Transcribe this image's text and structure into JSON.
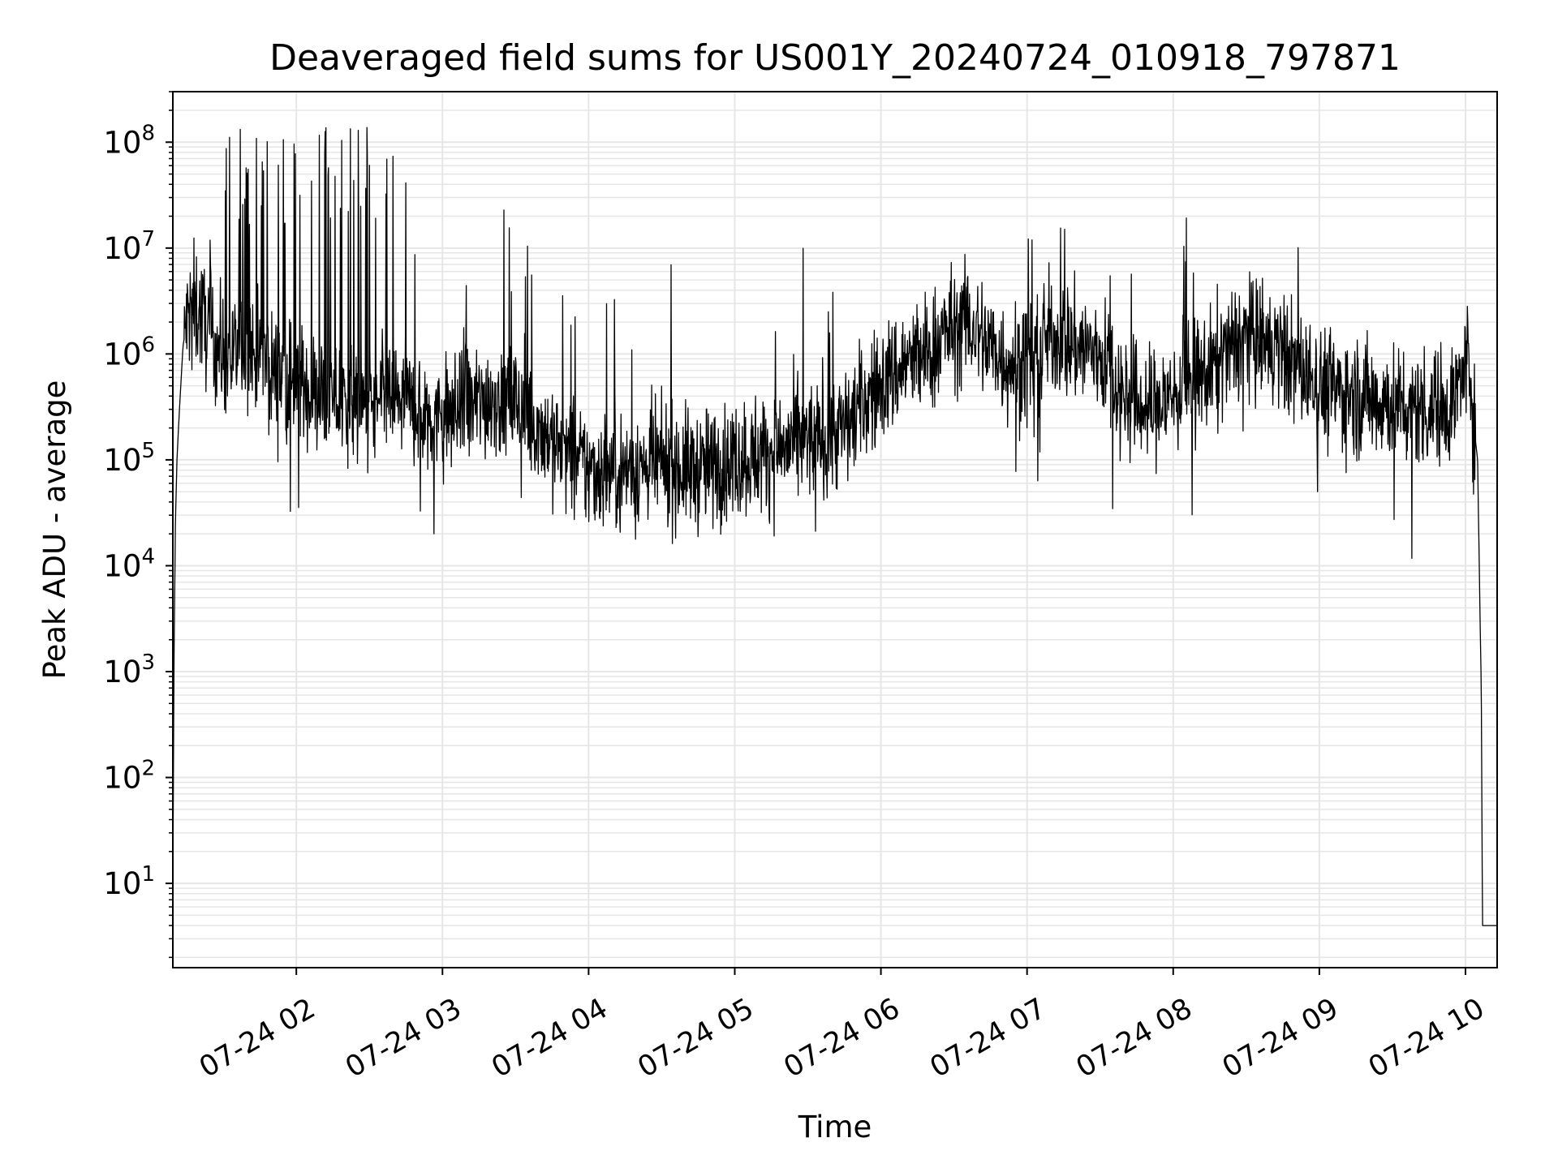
{
  "chart_data": {
    "type": "line",
    "title": "Deaveraged field sums for US001Y_20240724_010918_797871",
    "xlabel": "Time",
    "ylabel": "Peak ADU - average",
    "yscale": "log",
    "ylim": [
      1.6,
      300000000
    ],
    "xlim": [
      "2024-07-24 01:09:18",
      "2024-07-24 10:13:00"
    ],
    "grid": true,
    "line_color": "#000000",
    "grid_color": "#e6e6e6",
    "x_ticks": [
      {
        "t": "2024-07-24 02:00",
        "label": "07-24 02"
      },
      {
        "t": "2024-07-24 03:00",
        "label": "07-24 03"
      },
      {
        "t": "2024-07-24 04:00",
        "label": "07-24 04"
      },
      {
        "t": "2024-07-24 05:00",
        "label": "07-24 05"
      },
      {
        "t": "2024-07-24 06:00",
        "label": "07-24 06"
      },
      {
        "t": "2024-07-24 07:00",
        "label": "07-24 07"
      },
      {
        "t": "2024-07-24 08:00",
        "label": "07-24 08"
      },
      {
        "t": "2024-07-24 09:00",
        "label": "07-24 09"
      },
      {
        "t": "2024-07-24 10:00",
        "label": "07-24 10"
      }
    ],
    "y_ticks": [
      {
        "value": 10,
        "exp": "1"
      },
      {
        "value": 100,
        "exp": "2"
      },
      {
        "value": 1000,
        "exp": "3"
      },
      {
        "value": 10000,
        "exp": "4"
      },
      {
        "value": 100000,
        "exp": "5"
      },
      {
        "value": 1000000,
        "exp": "6"
      },
      {
        "value": 10000000,
        "exp": "7"
      },
      {
        "value": 100000000,
        "exp": "8"
      }
    ],
    "series": [
      {
        "x": [
          "2024-07-24 01:09:18",
          "2024-07-24 01:09:45",
          "2024-07-24 01:10:20",
          "2024-07-24 01:11:00",
          "2024-07-24 01:12:00",
          "2024-07-24 01:13:30",
          "2024-07-24 01:15:00",
          "2024-07-24 01:17:00",
          "2024-07-24 01:20:00",
          "2024-07-24 01:25:00",
          "2024-07-24 01:30:00",
          "2024-07-24 01:35:00",
          "2024-07-24 01:40:00",
          "2024-07-24 01:45:00",
          "2024-07-24 01:50:00",
          "2024-07-24 01:55:00",
          "2024-07-24 02:00:00",
          "2024-07-24 02:10:00",
          "2024-07-24 02:20:00",
          "2024-07-24 02:30:00",
          "2024-07-24 02:40:00",
          "2024-07-24 02:50:00",
          "2024-07-24 03:00:00",
          "2024-07-24 03:10:00",
          "2024-07-24 03:20:00",
          "2024-07-24 03:30:00",
          "2024-07-24 03:40:00",
          "2024-07-24 03:50:00",
          "2024-07-24 04:00:00",
          "2024-07-24 04:15:00",
          "2024-07-24 04:30:00",
          "2024-07-24 04:45:00",
          "2024-07-24 05:00:00",
          "2024-07-24 05:15:00",
          "2024-07-24 05:30:00",
          "2024-07-24 05:45:00",
          "2024-07-24 05:55:00",
          "2024-07-24 06:10:00",
          "2024-07-24 06:20:00",
          "2024-07-24 06:25:00",
          "2024-07-24 06:35:00",
          "2024-07-24 06:50:00",
          "2024-07-24 07:00:00",
          "2024-07-24 07:10:00",
          "2024-07-24 07:20:00",
          "2024-07-24 07:30:00",
          "2024-07-24 07:40:00",
          "2024-07-24 07:50:00",
          "2024-07-24 08:00:00",
          "2024-07-24 08:15:00",
          "2024-07-24 08:30:00",
          "2024-07-24 08:45:00",
          "2024-07-24 09:00:00",
          "2024-07-24 09:15:00",
          "2024-07-24 09:30:00",
          "2024-07-24 09:45:00",
          "2024-07-24 09:55:00",
          "2024-07-24 10:00:00",
          "2024-07-24 10:02:00",
          "2024-07-24 10:03:30",
          "2024-07-24 10:05:00",
          "2024-07-24 10:06:00",
          "2024-07-24 10:06:30",
          "2024-07-24 10:07:00",
          "2024-07-24 10:13:00"
        ],
        "y": [
          8,
          1000,
          25000,
          100000,
          300000,
          1200000,
          2000000,
          3000000,
          2500000,
          1500000,
          1000000,
          900000,
          1100000,
          900000,
          700000,
          600000,
          500000,
          400000,
          350000,
          300000,
          400000,
          300000,
          250000,
          300000,
          400000,
          350000,
          200000,
          120000,
          80000,
          80000,
          90000,
          80000,
          100000,
          120000,
          150000,
          200000,
          400000,
          800000,
          1000000,
          1500000,
          2000000,
          900000,
          800000,
          1500000,
          1200000,
          1000000,
          400000,
          300000,
          400000,
          700000,
          1500000,
          1000000,
          500000,
          400000,
          350000,
          300000,
          350000,
          800000,
          800000,
          200000,
          100000,
          3000,
          700,
          4,
          4
        ],
        "noise": "dense high-frequency noise of about one decade around this envelope, with spikes up to ~1e8 between 01:30 and 02:45"
      }
    ]
  }
}
